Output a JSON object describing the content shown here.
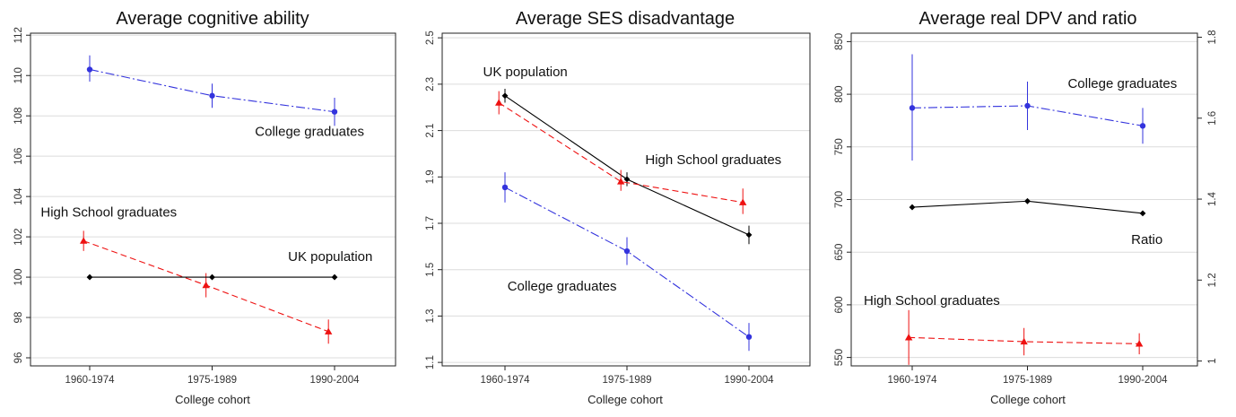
{
  "chart_data": [
    {
      "type": "line",
      "title": "Average cognitive ability",
      "xlabel": "College cohort",
      "ylabel": "",
      "categories": [
        "1960-1974",
        "1975-1989",
        "1990-2004"
      ],
      "ylim": [
        95.6,
        112.1
      ],
      "yticks": [
        "96",
        "98",
        "100",
        "102",
        "104",
        "106",
        "108",
        "110",
        "112"
      ],
      "grid": true,
      "series": [
        {
          "name": "College graduates",
          "color": "#3333dd",
          "dash": "dashdot",
          "marker": "circle",
          "x": [
            0,
            1,
            2
          ],
          "values": [
            110.3,
            109.0,
            108.2
          ],
          "lo": [
            109.7,
            108.4,
            107.5
          ],
          "hi": [
            111.0,
            109.6,
            108.9
          ]
        },
        {
          "name": "High School graduates",
          "color": "#ee1111",
          "dash": "dash",
          "marker": "triangle",
          "x": [
            -0.05,
            0.95,
            1.95
          ],
          "values": [
            101.8,
            99.6,
            97.3
          ],
          "lo": [
            101.3,
            99.0,
            96.7
          ],
          "hi": [
            102.3,
            100.2,
            97.9
          ]
        },
        {
          "name": "UK population",
          "color": "#000000",
          "dash": "solid",
          "marker": "diamond",
          "x": [
            0,
            1,
            2
          ],
          "values": [
            100.0,
            100.0,
            100.0
          ]
        }
      ],
      "annotations": [
        {
          "text": "College graduates",
          "x": 1.35,
          "y": 107.0,
          "anchor": "start"
        },
        {
          "text": "High School graduates",
          "x": -0.4,
          "y": 103.0,
          "anchor": "start"
        },
        {
          "text": "UK population",
          "x": 1.62,
          "y": 100.8,
          "anchor": "start"
        }
      ]
    },
    {
      "type": "line",
      "title": "Average SES disadvantage",
      "xlabel": "College cohort",
      "ylabel": "",
      "categories": [
        "1960-1974",
        "1975-1989",
        "1990-2004"
      ],
      "ylim": [
        1.085,
        2.52
      ],
      "yticks": [
        "1.1",
        "1.3",
        "1.5",
        "1.7",
        "1.9",
        "2.1",
        "2.3",
        "2.5"
      ],
      "grid": true,
      "series": [
        {
          "name": "UK population",
          "color": "#000000",
          "dash": "solid",
          "marker": "diamond",
          "x": [
            0,
            1,
            2
          ],
          "values": [
            2.25,
            1.89,
            1.65
          ],
          "lo": [
            2.22,
            1.86,
            1.61
          ],
          "hi": [
            2.28,
            1.92,
            1.69
          ]
        },
        {
          "name": "High School graduates",
          "color": "#ee1111",
          "dash": "dash",
          "marker": "triangle",
          "x": [
            -0.05,
            0.95,
            1.95
          ],
          "values": [
            2.22,
            1.88,
            1.79
          ],
          "lo": [
            2.17,
            1.84,
            1.74
          ],
          "hi": [
            2.27,
            1.93,
            1.85
          ]
        },
        {
          "name": "College graduates",
          "color": "#3333dd",
          "dash": "dashdot",
          "marker": "circle",
          "x": [
            0,
            1,
            2
          ],
          "values": [
            1.855,
            1.58,
            1.21
          ],
          "lo": [
            1.79,
            1.52,
            1.15
          ],
          "hi": [
            1.92,
            1.64,
            1.27
          ]
        }
      ],
      "annotations": [
        {
          "text": "UK population",
          "x": -0.18,
          "y": 2.335,
          "anchor": "start"
        },
        {
          "text": "High School graduates",
          "x": 1.15,
          "y": 1.955,
          "anchor": "start"
        },
        {
          "text": "College graduates",
          "x": 0.02,
          "y": 1.41,
          "anchor": "start"
        }
      ]
    },
    {
      "type": "line",
      "title": "Average real DPV and ratio",
      "xlabel": "College cohort",
      "ylabel": "",
      "categories": [
        "1960-1974",
        "1975-1989",
        "1990-2004"
      ],
      "ylim": [
        542,
        858
      ],
      "yticks": [
        "550",
        "600",
        "650",
        "700",
        "750",
        "800",
        "850"
      ],
      "y2lim": [
        0.988,
        1.81
      ],
      "y2ticks": [
        "1",
        "1.2",
        "1.4",
        "1.6",
        "1.8"
      ],
      "grid": true,
      "series": [
        {
          "name": "College graduates",
          "color": "#3333dd",
          "dash": "dashdot",
          "marker": "circle",
          "axis": "left",
          "x": [
            0,
            1,
            2
          ],
          "values": [
            787,
            789,
            770
          ],
          "lo": [
            737,
            766,
            753
          ],
          "hi": [
            838,
            812,
            787
          ]
        },
        {
          "name": "Ratio",
          "color": "#000000",
          "dash": "solid",
          "marker": "diamond",
          "axis": "right",
          "x": [
            0,
            1,
            2
          ],
          "values": [
            1.38,
            1.395,
            1.365
          ]
        },
        {
          "name": "High School graduates",
          "color": "#ee1111",
          "dash": "dash",
          "marker": "triangle",
          "axis": "left",
          "x": [
            -0.03,
            0.97,
            1.97
          ],
          "values": [
            569,
            565,
            563
          ],
          "lo": [
            543,
            552,
            553
          ],
          "hi": [
            595,
            578,
            573
          ]
        }
      ],
      "annotations": [
        {
          "text": "College graduates",
          "x": 1.35,
          "y": 806,
          "anchor": "start"
        },
        {
          "text": "Ratio",
          "x": 1.9,
          "y": 658,
          "anchor": "start"
        },
        {
          "text": "High School graduates",
          "x": -0.42,
          "y": 600,
          "anchor": "start"
        }
      ]
    }
  ]
}
